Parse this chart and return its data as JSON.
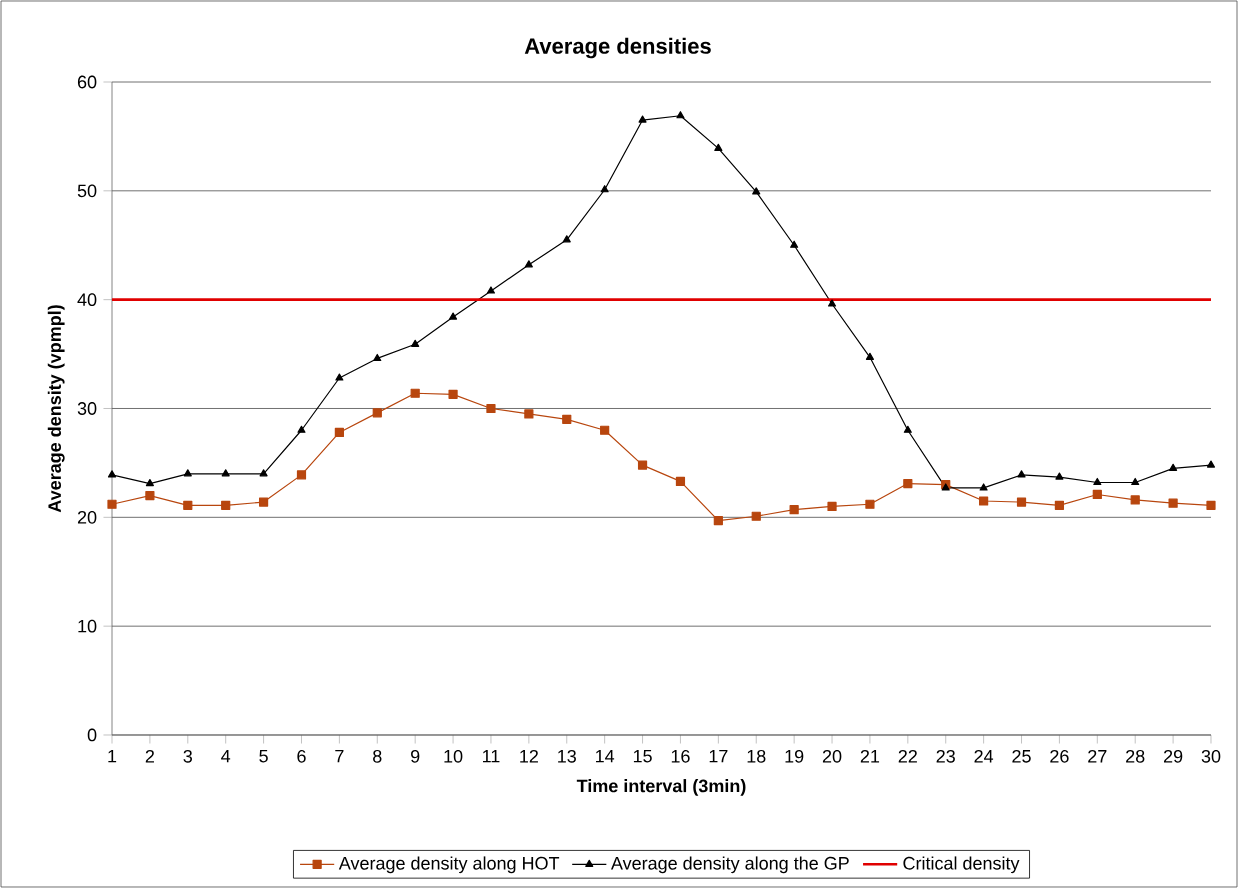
{
  "chart_data": {
    "type": "line",
    "title": "Average densities",
    "xlabel": "Time interval (3min)",
    "ylabel": "Average density (vpmpl)",
    "categories": [
      "1",
      "2",
      "3",
      "4",
      "5",
      "6",
      "7",
      "8",
      "9",
      "10",
      "11",
      "12",
      "13",
      "14",
      "15",
      "16",
      "17",
      "18",
      "19",
      "20",
      "21",
      "22",
      "23",
      "24",
      "25",
      "26",
      "27",
      "28",
      "29",
      "30"
    ],
    "series": [
      {
        "name": "Average density along HOT",
        "color": "#b8460e",
        "marker": "square",
        "values": [
          21.2,
          22.0,
          21.1,
          21.1,
          21.4,
          23.9,
          27.8,
          29.6,
          31.4,
          31.3,
          30.0,
          29.5,
          29.0,
          28.0,
          24.8,
          23.3,
          19.7,
          20.1,
          20.7,
          21.0,
          21.2,
          23.1,
          23.0,
          21.5,
          21.4,
          21.1,
          22.1,
          21.6,
          21.3,
          21.1
        ]
      },
      {
        "name": "Average density along the GP",
        "color": "#000000",
        "marker": "triangle",
        "values": [
          23.9,
          23.1,
          24.0,
          24.0,
          24.0,
          28.0,
          32.8,
          34.6,
          35.9,
          38.4,
          40.8,
          43.2,
          45.5,
          50.1,
          56.5,
          56.9,
          53.9,
          49.9,
          45.0,
          39.6,
          34.7,
          28.0,
          22.7,
          22.7,
          23.9,
          23.7,
          23.2,
          23.2,
          24.5,
          24.8
        ]
      }
    ],
    "ref_lines": [
      {
        "axis": "y",
        "value": 40,
        "label": "Critical density",
        "color": "#e00000"
      }
    ],
    "ylim": [
      0,
      60
    ],
    "yticks": [
      0,
      10,
      20,
      30,
      40,
      50,
      60
    ],
    "grid": "y",
    "legend": "bottom",
    "line_style": "solid"
  }
}
